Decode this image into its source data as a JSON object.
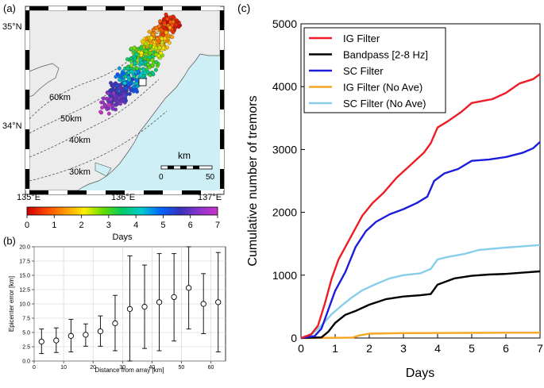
{
  "panels": {
    "a": {
      "label": "(a)",
      "lat_labels": [
        "35°N",
        "34°N"
      ],
      "lon_labels": [
        "135°E",
        "136°E",
        "137°E"
      ],
      "contour_labels": [
        "60km",
        "50km",
        "40km",
        "30km"
      ],
      "scale_bar": {
        "unit": "km",
        "min_label": "0",
        "max_label": "50"
      },
      "colorbar": {
        "ticks": [
          "0",
          "1",
          "2",
          "3",
          "4",
          "5",
          "6",
          "7"
        ],
        "label": "Days"
      }
    },
    "b": {
      "label": "(b)"
    },
    "c": {
      "label": "(c)"
    }
  },
  "chart_data": [
    {
      "type": "scatter",
      "panel": "b",
      "xlabel": "Distance from array [km]",
      "ylabel": "Epicenter error [km]",
      "xlim": [
        0,
        65
      ],
      "ylim": [
        0,
        20
      ],
      "xticks": [
        0,
        10,
        20,
        30,
        40,
        50,
        60
      ],
      "yticks": [
        0.0,
        2.5,
        5.0,
        7.5,
        10.0,
        12.5,
        15.0,
        17.5,
        20.0
      ],
      "ytick_labels": [
        "0.0",
        "2.5",
        "5.0",
        "7.5",
        "10.0",
        "12.5",
        "15.0",
        "17.5",
        "20.0"
      ],
      "grid": true,
      "points": [
        {
          "x": 2.5,
          "y": 3.4,
          "low": 1.3,
          "high": 5.6
        },
        {
          "x": 7.5,
          "y": 3.6,
          "low": 1.5,
          "high": 5.8
        },
        {
          "x": 12.5,
          "y": 4.4,
          "low": 1.6,
          "high": 7.3
        },
        {
          "x": 17.5,
          "y": 4.6,
          "low": 2.6,
          "high": 6.5
        },
        {
          "x": 22.5,
          "y": 5.2,
          "low": 2.6,
          "high": 7.9
        },
        {
          "x": 27.5,
          "y": 6.6,
          "low": 1.8,
          "high": 11.5
        },
        {
          "x": 32.5,
          "y": 9.1,
          "low": 0.0,
          "high": 18.4
        },
        {
          "x": 37.5,
          "y": 9.5,
          "low": 2.2,
          "high": 16.8
        },
        {
          "x": 42.5,
          "y": 10.3,
          "low": 1.8,
          "high": 18.8
        },
        {
          "x": 47.5,
          "y": 11.2,
          "low": 3.5,
          "high": 18.8
        },
        {
          "x": 52.5,
          "y": 12.8,
          "low": 5.6,
          "high": 20.0
        },
        {
          "x": 57.5,
          "y": 10.0,
          "low": 4.8,
          "high": 15.3
        },
        {
          "x": 62.5,
          "y": 10.3,
          "low": 1.6,
          "high": 19.0
        }
      ]
    },
    {
      "type": "line",
      "panel": "c",
      "xlabel": "Days",
      "ylabel": "Cumulative number of tremors",
      "xlim": [
        0,
        7
      ],
      "ylim": [
        0,
        5000
      ],
      "xticks": [
        0,
        1,
        2,
        3,
        4,
        5,
        6,
        7
      ],
      "yticks": [
        0,
        1000,
        2000,
        3000,
        4000,
        5000
      ],
      "legend_position": "top-left",
      "series": [
        {
          "name": "IG Filter",
          "color": "#ee1c25",
          "x": [
            0,
            0.3,
            0.5,
            0.7,
            0.9,
            1.1,
            1.3,
            1.5,
            1.8,
            2.1,
            2.4,
            2.8,
            3.2,
            3.6,
            3.8,
            4.0,
            4.3,
            4.7,
            5.0,
            5.4,
            5.6,
            6.0,
            6.4,
            6.8,
            7.0
          ],
          "y": [
            0,
            60,
            200,
            550,
            950,
            1250,
            1450,
            1650,
            1950,
            2150,
            2300,
            2550,
            2750,
            2950,
            3100,
            3350,
            3450,
            3600,
            3740,
            3780,
            3800,
            3900,
            4050,
            4120,
            4200
          ]
        },
        {
          "name": "Bandpass [2-8 Hz]",
          "color": "#000000",
          "x": [
            0,
            0.6,
            0.8,
            1.0,
            1.3,
            1.6,
            2.0,
            2.5,
            3.0,
            3.5,
            3.8,
            4.0,
            4.5,
            5.0,
            5.5,
            6.0,
            6.5,
            7.0
          ],
          "y": [
            0,
            10,
            100,
            240,
            370,
            430,
            530,
            620,
            660,
            680,
            700,
            850,
            950,
            990,
            1010,
            1020,
            1040,
            1060
          ]
        },
        {
          "name": "SC Filter",
          "color": "#1c1cdc",
          "x": [
            0,
            0.4,
            0.6,
            0.8,
            1.0,
            1.3,
            1.6,
            1.9,
            2.2,
            2.6,
            3.0,
            3.4,
            3.7,
            3.9,
            4.2,
            4.6,
            5.0,
            5.5,
            6.0,
            6.5,
            6.8,
            7.0
          ],
          "y": [
            0,
            30,
            150,
            450,
            750,
            1050,
            1450,
            1700,
            1850,
            1970,
            2050,
            2150,
            2250,
            2500,
            2620,
            2690,
            2820,
            2840,
            2880,
            2950,
            3020,
            3120
          ]
        },
        {
          "name": "IG Filter (No Ave)",
          "color": "#f5a623",
          "x": [
            0,
            1.5,
            1.7,
            2.0,
            3.0,
            4.0,
            5.0,
            6.0,
            7.0
          ],
          "y": [
            0,
            5,
            40,
            70,
            78,
            80,
            82,
            84,
            85
          ]
        },
        {
          "name": "SC Filter (No Ave)",
          "color": "#87ceeb",
          "x": [
            0,
            0.3,
            0.6,
            0.9,
            1.2,
            1.5,
            1.8,
            2.2,
            2.6,
            3.0,
            3.5,
            3.8,
            4.0,
            4.3,
            4.8,
            5.2,
            5.6,
            6.0,
            6.5,
            7.0
          ],
          "y": [
            0,
            50,
            200,
            380,
            520,
            650,
            760,
            860,
            950,
            1000,
            1030,
            1100,
            1250,
            1290,
            1340,
            1400,
            1420,
            1440,
            1460,
            1480
          ]
        }
      ]
    }
  ],
  "map": {
    "colors": {
      "land": "#ececec",
      "sea": "#cdeff5"
    },
    "colorbar_stops": [
      "#cc0000",
      "#ff4400",
      "#ff9900",
      "#ffee00",
      "#66dd00",
      "#00cc66",
      "#00cccc",
      "#0066ff",
      "#3333bb",
      "#8833cc",
      "#cc33cc"
    ]
  }
}
